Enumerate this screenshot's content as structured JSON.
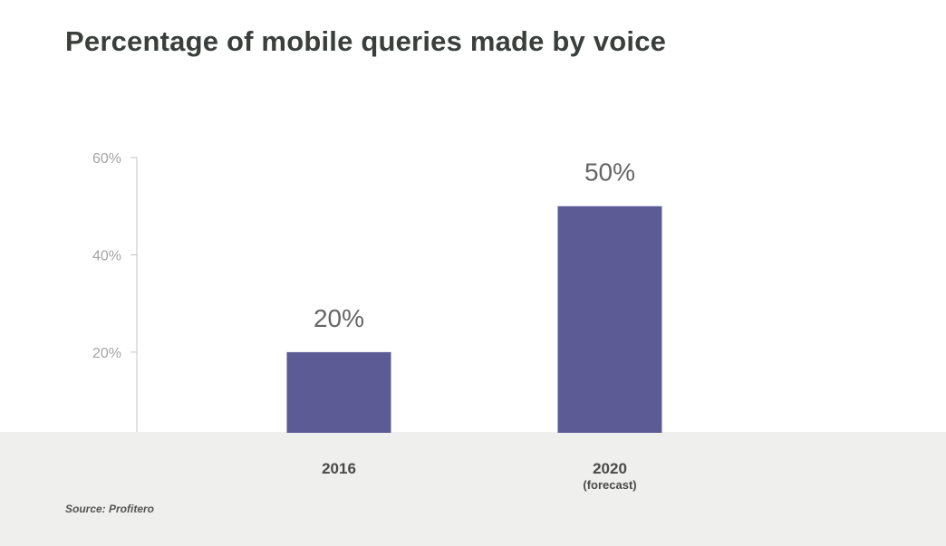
{
  "title": "Percentage of mobile queries made by voice",
  "source": "Source: Profitero",
  "colors": {
    "bar": "#5c5b95",
    "axis": "#c4c4c4",
    "footer_bg": "#efefed"
  },
  "chart_data": {
    "type": "bar",
    "title": "Percentage of mobile queries made by voice",
    "categories": [
      "2016",
      "2020"
    ],
    "category_notes": [
      "",
      "(forecast)"
    ],
    "values": [
      20,
      50
    ],
    "value_labels": [
      "20%",
      "50%"
    ],
    "yticks": [
      20,
      40,
      60
    ],
    "ytick_labels": [
      "20%",
      "40%",
      "60%"
    ],
    "ylim": [
      3.6,
      60
    ],
    "xlabel": "",
    "ylabel": "",
    "grid": false,
    "legend": "none"
  }
}
